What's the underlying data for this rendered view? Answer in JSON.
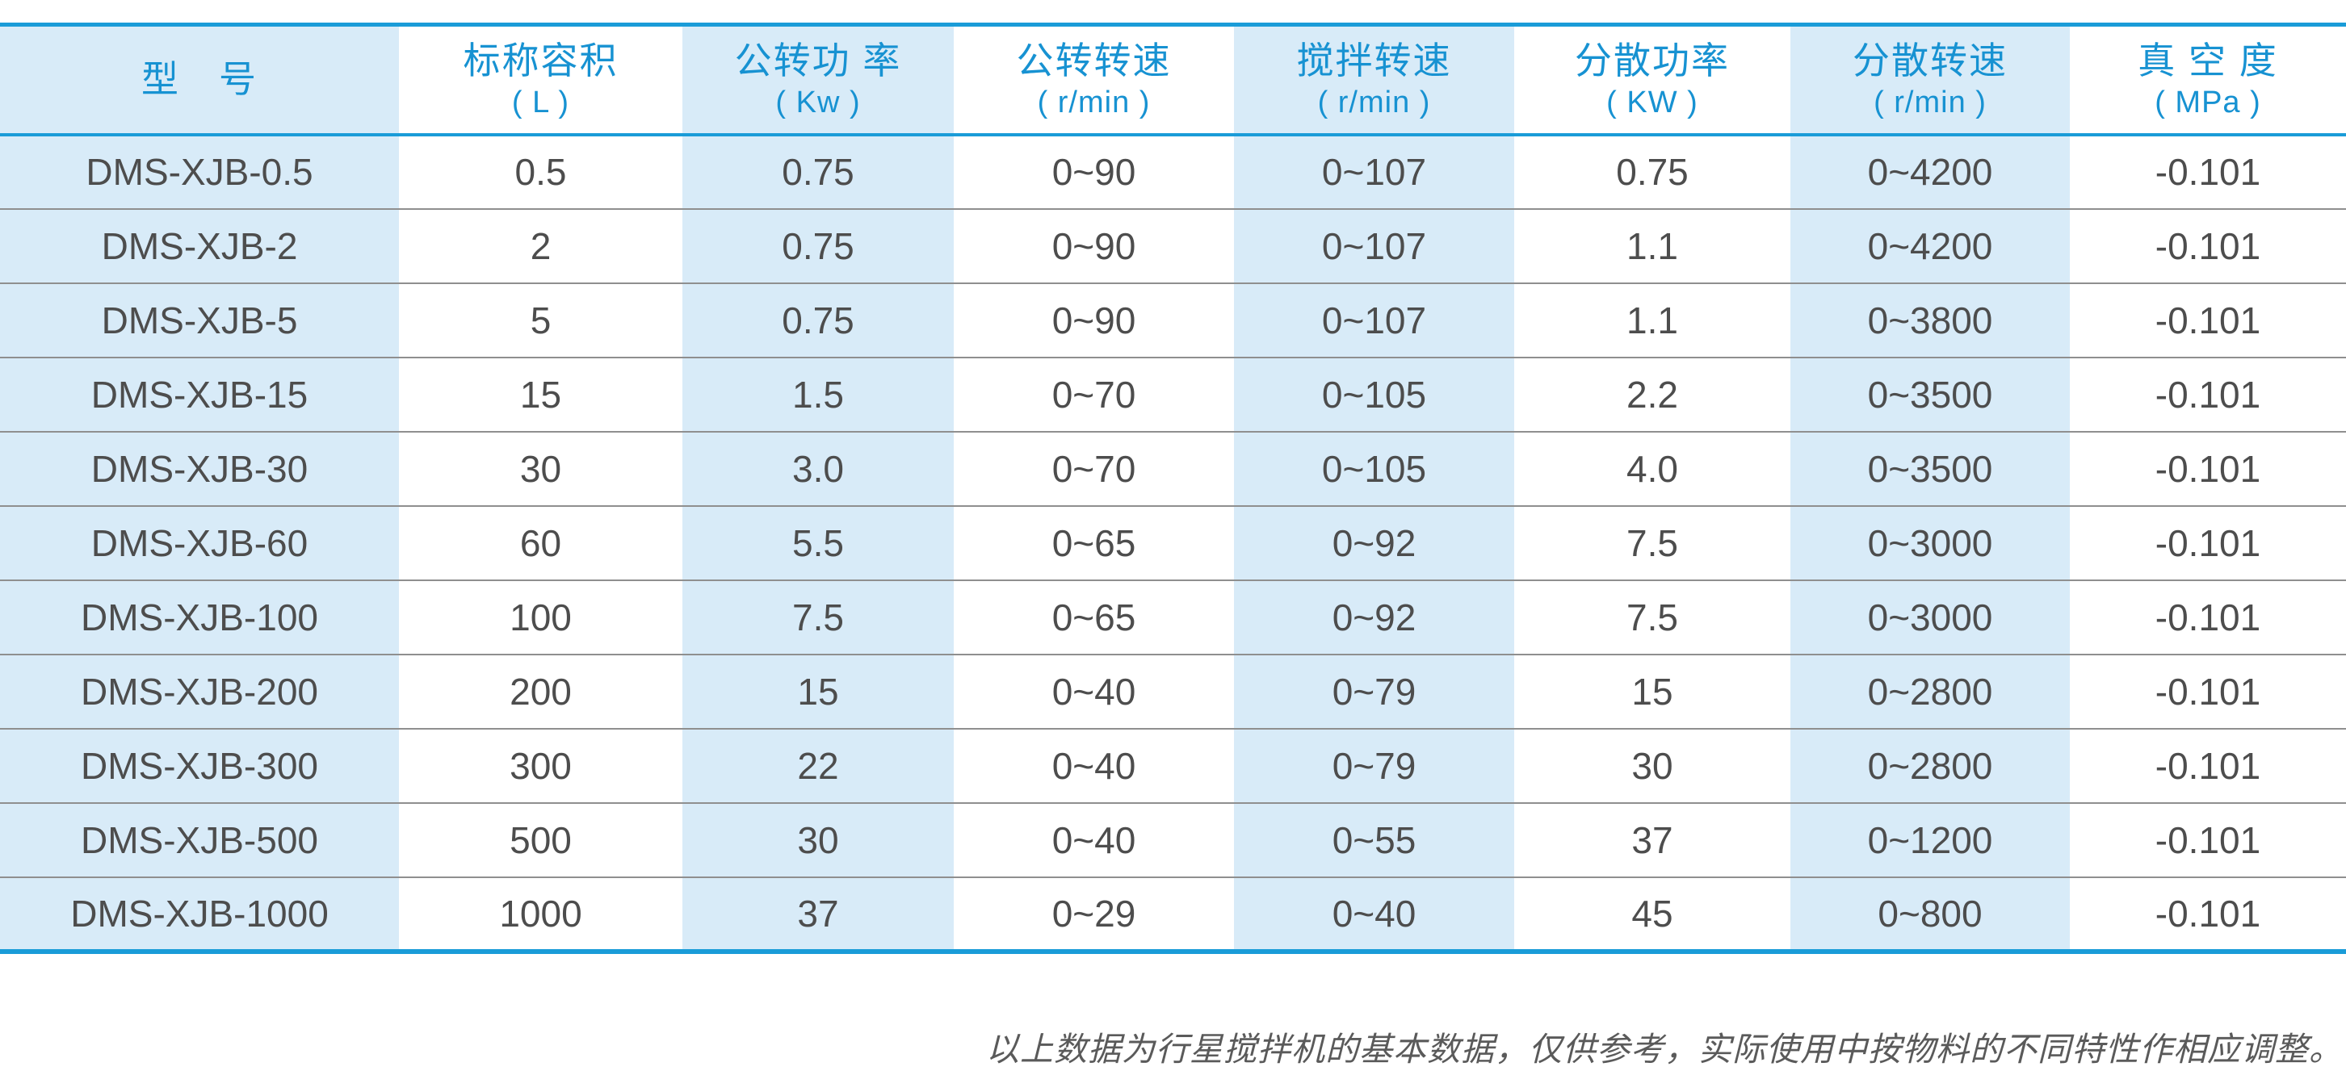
{
  "colors": {
    "accent": "#1a9cd8",
    "header_text": "#1792d2",
    "shade": "#d8ebf8",
    "body_text": "#4d4d4d",
    "divider": "#8f8f8f",
    "note_text": "#5a5a5a"
  },
  "chart_data": {
    "type": "table",
    "columns": [
      {
        "title": "型　号",
        "unit": "",
        "shaded": true
      },
      {
        "title": "标称容积",
        "unit": "( L )",
        "shaded": false
      },
      {
        "title": "公转功 率",
        "unit": "( Kw )",
        "shaded": true
      },
      {
        "title": "公转转速",
        "unit": "( r/min )",
        "shaded": false
      },
      {
        "title": "搅拌转速",
        "unit": "( r/min )",
        "shaded": true
      },
      {
        "title": "分散功率",
        "unit": "( KW )",
        "shaded": false
      },
      {
        "title": "分散转速",
        "unit": "( r/min )",
        "shaded": true
      },
      {
        "title": "真 空 度",
        "unit": "( MPa )",
        "shaded": false
      }
    ],
    "rows": [
      [
        "DMS-XJB-0.5",
        "0.5",
        "0.75",
        "0~90",
        "0~107",
        "0.75",
        "0~4200",
        "-0.101"
      ],
      [
        "DMS-XJB-2",
        "2",
        "0.75",
        "0~90",
        "0~107",
        "1.1",
        "0~4200",
        "-0.101"
      ],
      [
        "DMS-XJB-5",
        "5",
        "0.75",
        "0~90",
        "0~107",
        "1.1",
        "0~3800",
        "-0.101"
      ],
      [
        "DMS-XJB-15",
        "15",
        "1.5",
        "0~70",
        "0~105",
        "2.2",
        "0~3500",
        "-0.101"
      ],
      [
        "DMS-XJB-30",
        "30",
        "3.0",
        "0~70",
        "0~105",
        "4.0",
        "0~3500",
        "-0.101"
      ],
      [
        "DMS-XJB-60",
        "60",
        "5.5",
        "0~65",
        "0~92",
        "7.5",
        "0~3000",
        "-0.101"
      ],
      [
        "DMS-XJB-100",
        "100",
        "7.5",
        "0~65",
        "0~92",
        "7.5",
        "0~3000",
        "-0.101"
      ],
      [
        "DMS-XJB-200",
        "200",
        "15",
        "0~40",
        "0~79",
        "15",
        "0~2800",
        "-0.101"
      ],
      [
        "DMS-XJB-300",
        "300",
        "22",
        "0~40",
        "0~79",
        "30",
        "0~2800",
        "-0.101"
      ],
      [
        "DMS-XJB-500",
        "500",
        "30",
        "0~40",
        "0~55",
        "37",
        "0~1200",
        "-0.101"
      ],
      [
        "DMS-XJB-1000",
        "1000",
        "37",
        "0~29",
        "0~40",
        "45",
        "0~800",
        "-0.101"
      ]
    ],
    "note": "以上数据为行星搅拌机的基本数据，仅供参考，实际使用中按物料的不同特性作相应调整。"
  }
}
